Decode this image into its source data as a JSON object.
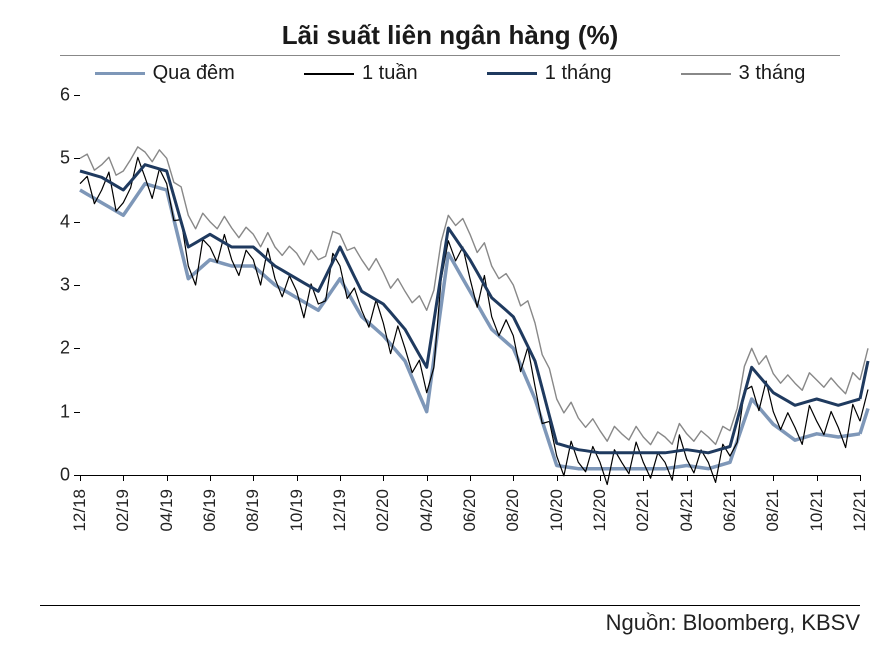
{
  "title": {
    "text": "Lãi suất liên ngân hàng (%)",
    "fontsize": 26,
    "fontweight": "bold",
    "color": "#1a1a1a"
  },
  "source": {
    "text": "Nguồn:  Bloomberg, KBSV"
  },
  "chart": {
    "type": "line",
    "background_color": "#ffffff",
    "ylim": [
      0,
      6
    ],
    "ytick_step": 1,
    "yticks": [
      0,
      1,
      2,
      3,
      4,
      5,
      6
    ],
    "xlabels": [
      "12/18",
      "02/19",
      "04/19",
      "06/19",
      "08/19",
      "10/19",
      "12/19",
      "02/20",
      "04/20",
      "06/20",
      "08/20",
      "10/20",
      "12/20",
      "02/21",
      "04/21",
      "06/21",
      "08/21",
      "10/21",
      "12/21"
    ],
    "x_points_count": 37,
    "tick_fontsize": 18,
    "series": [
      {
        "name": "Qua đêm",
        "color": "#7e97b8",
        "line_width": 3.5,
        "values": [
          4.5,
          4.3,
          4.1,
          4.6,
          4.5,
          3.1,
          3.4,
          3.3,
          3.3,
          3.0,
          2.8,
          2.6,
          3.1,
          2.5,
          2.2,
          1.8,
          1.0,
          3.5,
          2.9,
          2.3,
          2.0,
          1.2,
          0.15,
          0.1,
          0.1,
          0.1,
          0.1,
          0.1,
          0.15,
          0.1,
          0.2,
          1.2,
          0.8,
          0.55,
          0.65,
          0.6,
          0.65
        ]
      },
      {
        "name": "1 tuần",
        "color": "#000000",
        "line_width": 1.2,
        "values": [
          4.6,
          4.5,
          4.3,
          4.7,
          4.6,
          3.3,
          3.6,
          3.4,
          3.4,
          3.1,
          2.9,
          2.7,
          3.3,
          2.6,
          2.4,
          2.0,
          1.3,
          3.7,
          3.1,
          2.5,
          2.2,
          1.4,
          0.3,
          0.2,
          0.2,
          0.2,
          0.2,
          0.2,
          0.25,
          0.2,
          0.3,
          1.4,
          1.0,
          0.75,
          0.85,
          0.75,
          0.85
        ]
      },
      {
        "name": "1 tháng",
        "color": "#1f3a5f",
        "line_width": 3.0,
        "values": [
          4.8,
          4.7,
          4.5,
          4.9,
          4.8,
          3.6,
          3.8,
          3.6,
          3.6,
          3.3,
          3.1,
          2.9,
          3.6,
          2.9,
          2.7,
          2.3,
          1.7,
          3.9,
          3.4,
          2.8,
          2.5,
          1.8,
          0.5,
          0.4,
          0.35,
          0.35,
          0.35,
          0.35,
          0.4,
          0.35,
          0.45,
          1.7,
          1.3,
          1.1,
          1.2,
          1.1,
          1.2
        ]
      },
      {
        "name": "3 tháng",
        "color": "#888888",
        "line_width": 1.4,
        "values": [
          5.0,
          4.9,
          4.8,
          5.1,
          5.0,
          4.1,
          4.0,
          3.9,
          3.8,
          3.6,
          3.5,
          3.4,
          3.8,
          3.4,
          3.2,
          2.9,
          2.6,
          4.1,
          3.8,
          3.3,
          3.0,
          2.4,
          1.2,
          0.9,
          0.7,
          0.65,
          0.6,
          0.6,
          0.65,
          0.6,
          0.7,
          2.0,
          1.6,
          1.45,
          1.5,
          1.4,
          1.5
        ]
      }
    ],
    "micro_noise": [
      [
        0,
        0,
        0,
        0,
        0,
        0,
        0,
        0,
        0,
        0,
        0,
        0,
        0,
        0,
        0,
        0,
        0,
        0,
        0,
        0,
        0,
        0,
        0,
        0,
        0,
        0,
        0,
        0,
        0,
        0,
        0,
        0,
        0,
        0,
        0,
        0,
        0,
        0,
        0,
        0,
        0,
        0,
        0,
        0,
        0,
        0,
        0,
        0,
        0,
        0,
        0,
        0,
        0,
        0,
        0,
        0,
        0,
        0,
        0,
        0,
        0,
        0,
        0,
        0,
        0,
        0,
        0,
        0,
        0,
        0,
        0,
        0,
        0
      ],
      [
        0.15,
        -0.25,
        0.35,
        -0.2,
        0.1,
        0.45,
        -0.3,
        0.2,
        -0.15,
        0.3,
        -0.4,
        0.22,
        -0.18,
        0.33,
        -0.25,
        0.15,
        -0.3,
        0.38,
        -0.22,
        0.18,
        -0.35,
        0.25,
        -0.15,
        0.4,
        -0.28,
        0.12,
        -0.2,
        0.3,
        -0.35,
        0.22,
        -0.15,
        0.28,
        -0.4,
        0.18,
        -0.12,
        0.3,
        -0.25,
        0.45,
        -0.2,
        0.15,
        -0.3,
        0.35,
        -0.22,
        0.18,
        -0.28,
        0.3,
        -0.15,
        0.25,
        -0.35,
        0.2,
        -0.18,
        0.32,
        -0.25,
        0.15,
        -0.3,
        0.4,
        -0.2,
        0.18,
        -0.35,
        0.22,
        -0.15,
        0.3,
        -0.25,
        0.35,
        -0.2,
        0.15,
        -0.3,
        0.28,
        -0.18,
        0.22,
        -0.35,
        0.3,
        -0.15
      ],
      [
        0,
        0,
        0,
        0,
        0,
        0,
        0,
        0,
        0,
        0,
        0,
        0,
        0,
        0,
        0,
        0,
        0,
        0,
        0,
        0,
        0,
        0,
        0,
        0,
        0,
        0,
        0,
        0,
        0,
        0,
        0,
        0,
        0,
        0,
        0,
        0,
        0,
        0,
        0,
        0,
        0,
        0,
        0,
        0,
        0,
        0,
        0,
        0,
        0,
        0,
        0,
        0,
        0,
        0,
        0,
        0,
        0,
        0,
        0,
        0,
        0,
        0,
        0,
        0,
        0,
        0,
        0,
        0,
        0,
        0,
        0,
        0,
        0
      ],
      [
        0.1,
        -0.12,
        0.15,
        -0.1,
        0.08,
        0.18,
        -0.12,
        0.1,
        -0.08,
        0.15,
        -0.18,
        0.1,
        -0.08,
        0.15,
        -0.12,
        0.08,
        -0.13,
        0.16,
        -0.1,
        0.08,
        -0.15,
        0.12,
        -0.08,
        0.18,
        -0.12,
        0.06,
        -0.1,
        0.15,
        -0.15,
        0.1,
        -0.08,
        0.13,
        -0.18,
        0.08,
        -0.06,
        0.15,
        -0.12,
        0.2,
        -0.1,
        0.08,
        -0.13,
        0.15,
        -0.1,
        0.08,
        -0.12,
        0.15,
        -0.08,
        0.12,
        -0.15,
        0.1,
        -0.08,
        0.15,
        -0.12,
        0.08,
        -0.13,
        0.18,
        -0.1,
        0.08,
        -0.15,
        0.1,
        -0.08,
        0.15,
        -0.12,
        0.15,
        -0.1,
        0.08,
        -0.13,
        0.13,
        -0.08,
        0.1,
        -0.15,
        0.15,
        -0.08
      ]
    ]
  }
}
